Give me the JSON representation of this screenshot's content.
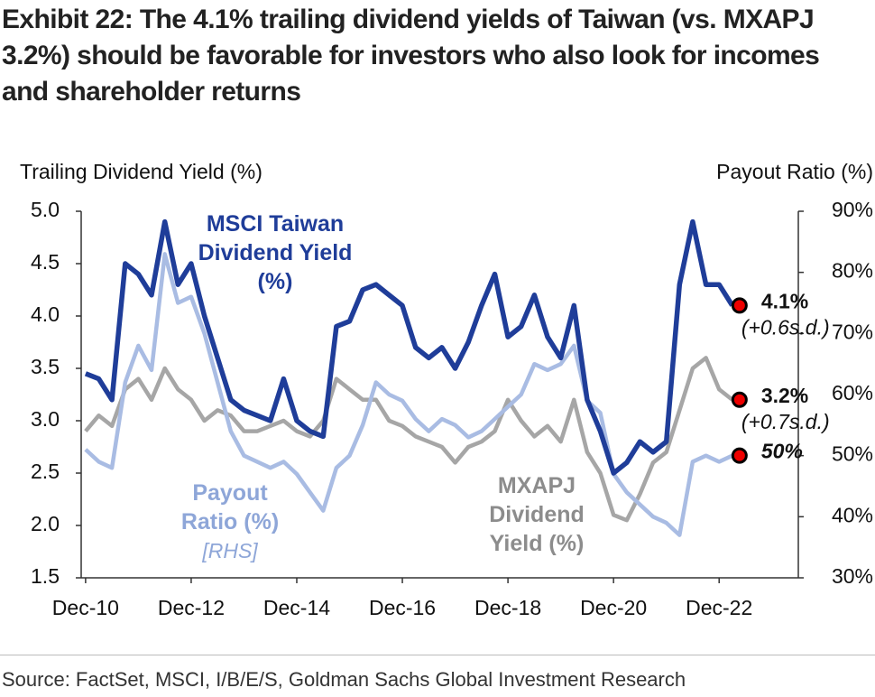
{
  "chart_data": {
    "type": "line",
    "title": "Exhibit 22: The 4.1% trailing dividend yields of Taiwan (vs. MXAPJ 3.2%) should be favorable for investors who also look for incomes and shareholder returns",
    "ylabel": "Trailing Dividend Yield (%)",
    "y2label": "Payout Ratio (%)",
    "source": "Source: FactSet, MSCI, I/B/E/S, Goldman Sachs Global Investment Research",
    "x": [
      "Dec-10",
      "Mar-11",
      "Jun-11",
      "Sep-11",
      "Dec-11",
      "Mar-12",
      "Jun-12",
      "Sep-12",
      "Dec-12",
      "Mar-13",
      "Jun-13",
      "Sep-13",
      "Dec-13",
      "Mar-14",
      "Jun-14",
      "Sep-14",
      "Dec-14",
      "Mar-15",
      "Jun-15",
      "Sep-15",
      "Dec-15",
      "Mar-16",
      "Jun-16",
      "Sep-16",
      "Dec-16",
      "Mar-17",
      "Jun-17",
      "Sep-17",
      "Dec-17",
      "Mar-18",
      "Jun-18",
      "Sep-18",
      "Dec-18",
      "Mar-19",
      "Jun-19",
      "Sep-19",
      "Dec-19",
      "Mar-20",
      "Jun-20",
      "Sep-20",
      "Dec-20",
      "Mar-21",
      "Jun-21",
      "Sep-21",
      "Dec-21",
      "Mar-22",
      "Jun-22",
      "Sep-22",
      "Dec-22",
      "Mar-23"
    ],
    "xlim": [
      "Nov-10",
      "Jun-24"
    ],
    "xticks": [
      "Dec-10",
      "Dec-12",
      "Dec-14",
      "Dec-16",
      "Dec-18",
      "Dec-20",
      "Dec-22"
    ],
    "ylim": [
      1.5,
      5.0
    ],
    "yticks": [
      1.5,
      {
        "value": 2.0,
        "label": "2.0"
      },
      2.5,
      {
        "value": 3.0,
        "label": "3.0"
      },
      3.5,
      {
        "value": 4.0,
        "label": "4.0"
      },
      4.5,
      {
        "value": 5.0,
        "label": "5.0"
      }
    ],
    "y2lim": [
      30,
      90
    ],
    "y2ticks": [
      {
        "value": 30,
        "label": "30%"
      },
      {
        "value": 40,
        "label": "40%"
      },
      {
        "value": 50,
        "label": "50%"
      },
      {
        "value": 60,
        "label": "60%"
      },
      {
        "value": 70,
        "label": "70%"
      },
      {
        "value": 80,
        "label": "80%"
      },
      {
        "value": 90,
        "label": "90%"
      }
    ],
    "series": [
      {
        "name": "MXAPJ Dividend Yield (%)",
        "color": "#a6a6a6",
        "values": [
          2.9,
          3.05,
          2.95,
          3.3,
          3.4,
          3.2,
          3.5,
          3.3,
          3.2,
          3.0,
          3.1,
          3.05,
          2.9,
          2.9,
          2.95,
          3.0,
          2.9,
          2.85,
          3.0,
          3.4,
          3.3,
          3.2,
          3.2,
          3.0,
          2.95,
          2.85,
          2.8,
          2.75,
          2.6,
          2.75,
          2.8,
          2.9,
          3.2,
          3.0,
          2.85,
          2.95,
          2.8,
          3.2,
          2.7,
          2.5,
          2.1,
          2.05,
          2.3,
          2.6,
          2.7,
          3.1,
          3.5,
          3.6,
          3.3,
          3.2
        ]
      },
      {
        "name": "Payout Ratio (%)",
        "note": "[RHS]",
        "color": "#a9bce3",
        "axis": "y2",
        "values": [
          51,
          49,
          48,
          62,
          68,
          64,
          83,
          75,
          76,
          70,
          62,
          54,
          50,
          49,
          48,
          49,
          47,
          44,
          41,
          48,
          50,
          55,
          62,
          60,
          59,
          56,
          54,
          56,
          55,
          53,
          54,
          56,
          58,
          60,
          65,
          64,
          65,
          68,
          59,
          57,
          47,
          44,
          42,
          40,
          39,
          37,
          49,
          50,
          49,
          50
        ]
      },
      {
        "name": "MSCI Taiwan Dividend Yield (%)",
        "color": "#1f3d99",
        "values": [
          3.45,
          3.4,
          3.2,
          4.5,
          4.4,
          4.2,
          4.9,
          4.3,
          4.5,
          4.0,
          3.6,
          3.2,
          3.1,
          3.05,
          3.0,
          3.4,
          3.0,
          2.9,
          2.85,
          3.9,
          3.95,
          4.25,
          4.3,
          4.2,
          4.1,
          3.7,
          3.6,
          3.7,
          3.5,
          3.75,
          4.1,
          4.4,
          3.8,
          3.9,
          4.2,
          3.8,
          3.6,
          4.1,
          3.2,
          2.9,
          2.5,
          2.6,
          2.8,
          2.7,
          2.8,
          4.3,
          4.9,
          4.3,
          4.3,
          4.1
        ]
      }
    ],
    "annotations": [
      {
        "text": "3.2%",
        "sub": "(+0.7s.d.)"
      },
      {
        "text": "50%"
      },
      {
        "text": "4.1%",
        "sub": "(+0.6s.d.)"
      }
    ]
  }
}
